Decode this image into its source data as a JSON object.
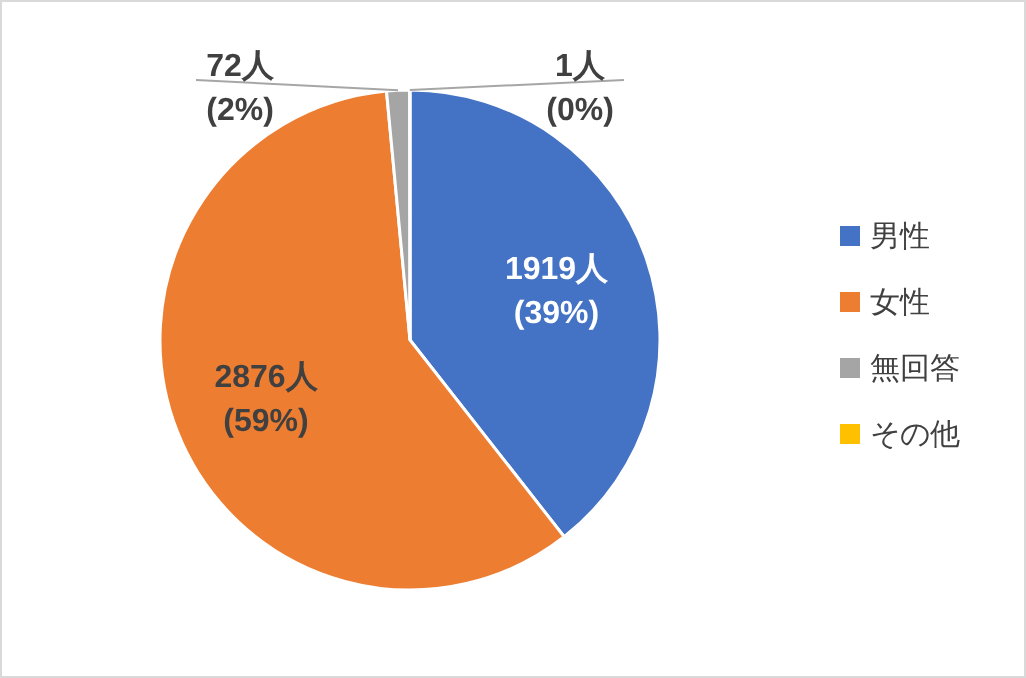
{
  "chart_data": {
    "type": "pie",
    "categories": [
      "男性",
      "女性",
      "無回答",
      "その他"
    ],
    "values": [
      1919,
      2876,
      72,
      1
    ],
    "colors": [
      "#4472c4",
      "#ed7d31",
      "#a5a5a5",
      "#ffc000"
    ],
    "value_labels": [
      "1919人\n(39%)",
      "2876人\n(59%)",
      "72人\n(2%)",
      "1人\n(0%)"
    ],
    "legend": "right"
  }
}
